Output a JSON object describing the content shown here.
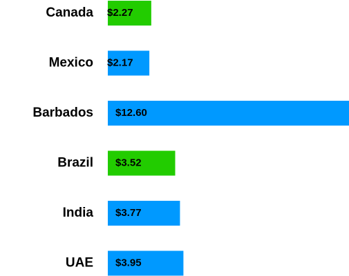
{
  "chart_data": {
    "type": "bar",
    "orientation": "horizontal",
    "categories": [
      "Canada",
      "Mexico",
      "Barbados",
      "Brazil",
      "India",
      "UAE"
    ],
    "values": [
      2.27,
      2.17,
      12.6,
      3.52,
      3.77,
      3.95
    ],
    "value_labels": [
      "$2.27",
      "$2.17",
      "$12.60",
      "$3.52",
      "$3.77",
      "$3.95"
    ],
    "colors": [
      "#22cc00",
      "#0099ff",
      "#0099ff",
      "#22cc00",
      "#0099ff",
      "#0099ff"
    ]
  }
}
